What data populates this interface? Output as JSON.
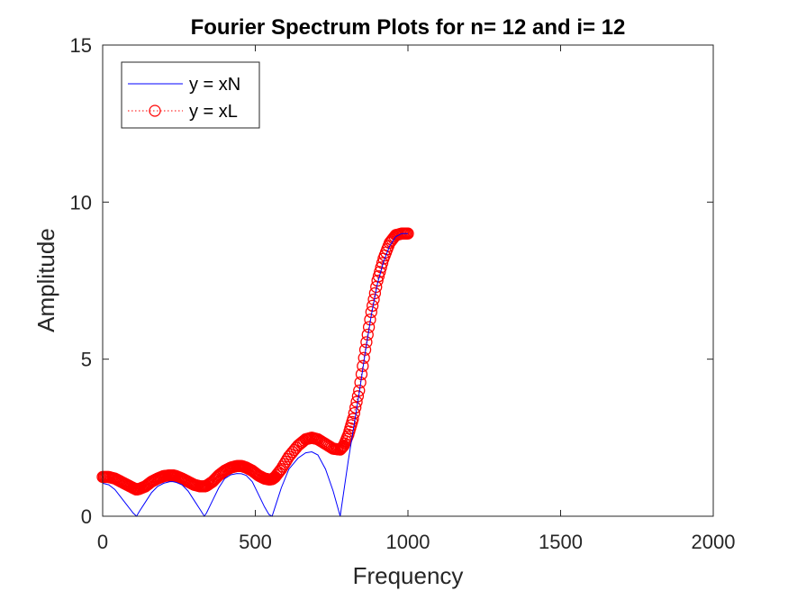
{
  "chart_data": {
    "type": "line",
    "title": "Fourier Spectrum Plots for n= 12 and i= 12",
    "xlabel": "Frequency",
    "ylabel": "Amplitude",
    "xlim": [
      0,
      2000
    ],
    "ylim": [
      0,
      15
    ],
    "xticks": [
      "0",
      "500",
      "1000",
      "1500",
      "2000"
    ],
    "yticks": [
      "0",
      "5",
      "10",
      "15"
    ],
    "grid": false,
    "legend_position": "top-left",
    "series": [
      {
        "name": "y = xN",
        "color": "#0000ff",
        "style": "solid",
        "marker": "none",
        "x": [
          0,
          20,
          40,
          60,
          80,
          100,
          111,
          120,
          140,
          160,
          180,
          200,
          220,
          230,
          240,
          260,
          280,
          300,
          320,
          333,
          340,
          360,
          380,
          400,
          420,
          440,
          455,
          470,
          490,
          510,
          530,
          545,
          555,
          565,
          585,
          610,
          640,
          665,
          685,
          705,
          730,
          755,
          778,
          790,
          805,
          820,
          840,
          860,
          880,
          900,
          920,
          940,
          960,
          980,
          1000
        ],
        "y": [
          1.05,
          1.0,
          0.85,
          0.6,
          0.35,
          0.1,
          0.0,
          0.15,
          0.45,
          0.75,
          0.95,
          1.05,
          1.1,
          1.1,
          1.08,
          1.0,
          0.8,
          0.5,
          0.2,
          0.0,
          0.1,
          0.5,
          0.9,
          1.2,
          1.32,
          1.36,
          1.35,
          1.3,
          1.1,
          0.7,
          0.3,
          0.05,
          0.0,
          0.3,
          0.9,
          1.5,
          1.85,
          2.02,
          2.05,
          1.95,
          1.5,
          0.8,
          0.0,
          0.8,
          1.8,
          2.7,
          3.9,
          5.2,
          6.4,
          7.4,
          8.1,
          8.6,
          8.9,
          9.0,
          9.0
        ]
      },
      {
        "name": "y = xL",
        "color": "#ff0000",
        "style": "dotted",
        "marker": "circle",
        "x": [
          0,
          20,
          40,
          60,
          80,
          100,
          111,
          120,
          140,
          160,
          180,
          200,
          220,
          230,
          240,
          260,
          280,
          300,
          320,
          333,
          340,
          360,
          380,
          400,
          420,
          440,
          455,
          470,
          490,
          510,
          530,
          545,
          555,
          565,
          585,
          610,
          640,
          665,
          685,
          705,
          730,
          755,
          778,
          790,
          805,
          820,
          840,
          860,
          880,
          900,
          920,
          940,
          960,
          980,
          1000
        ],
        "y": [
          1.25,
          1.25,
          1.2,
          1.1,
          1.0,
          0.9,
          0.85,
          0.87,
          0.95,
          1.1,
          1.2,
          1.28,
          1.3,
          1.3,
          1.28,
          1.2,
          1.1,
          1.0,
          0.95,
          0.95,
          0.97,
          1.1,
          1.3,
          1.45,
          1.55,
          1.6,
          1.6,
          1.55,
          1.45,
          1.3,
          1.2,
          1.17,
          1.18,
          1.25,
          1.5,
          1.9,
          2.25,
          2.45,
          2.5,
          2.45,
          2.3,
          2.15,
          2.12,
          2.25,
          2.6,
          3.1,
          4.0,
          5.3,
          6.5,
          7.5,
          8.2,
          8.7,
          8.95,
          9.0,
          9.0
        ]
      }
    ]
  }
}
